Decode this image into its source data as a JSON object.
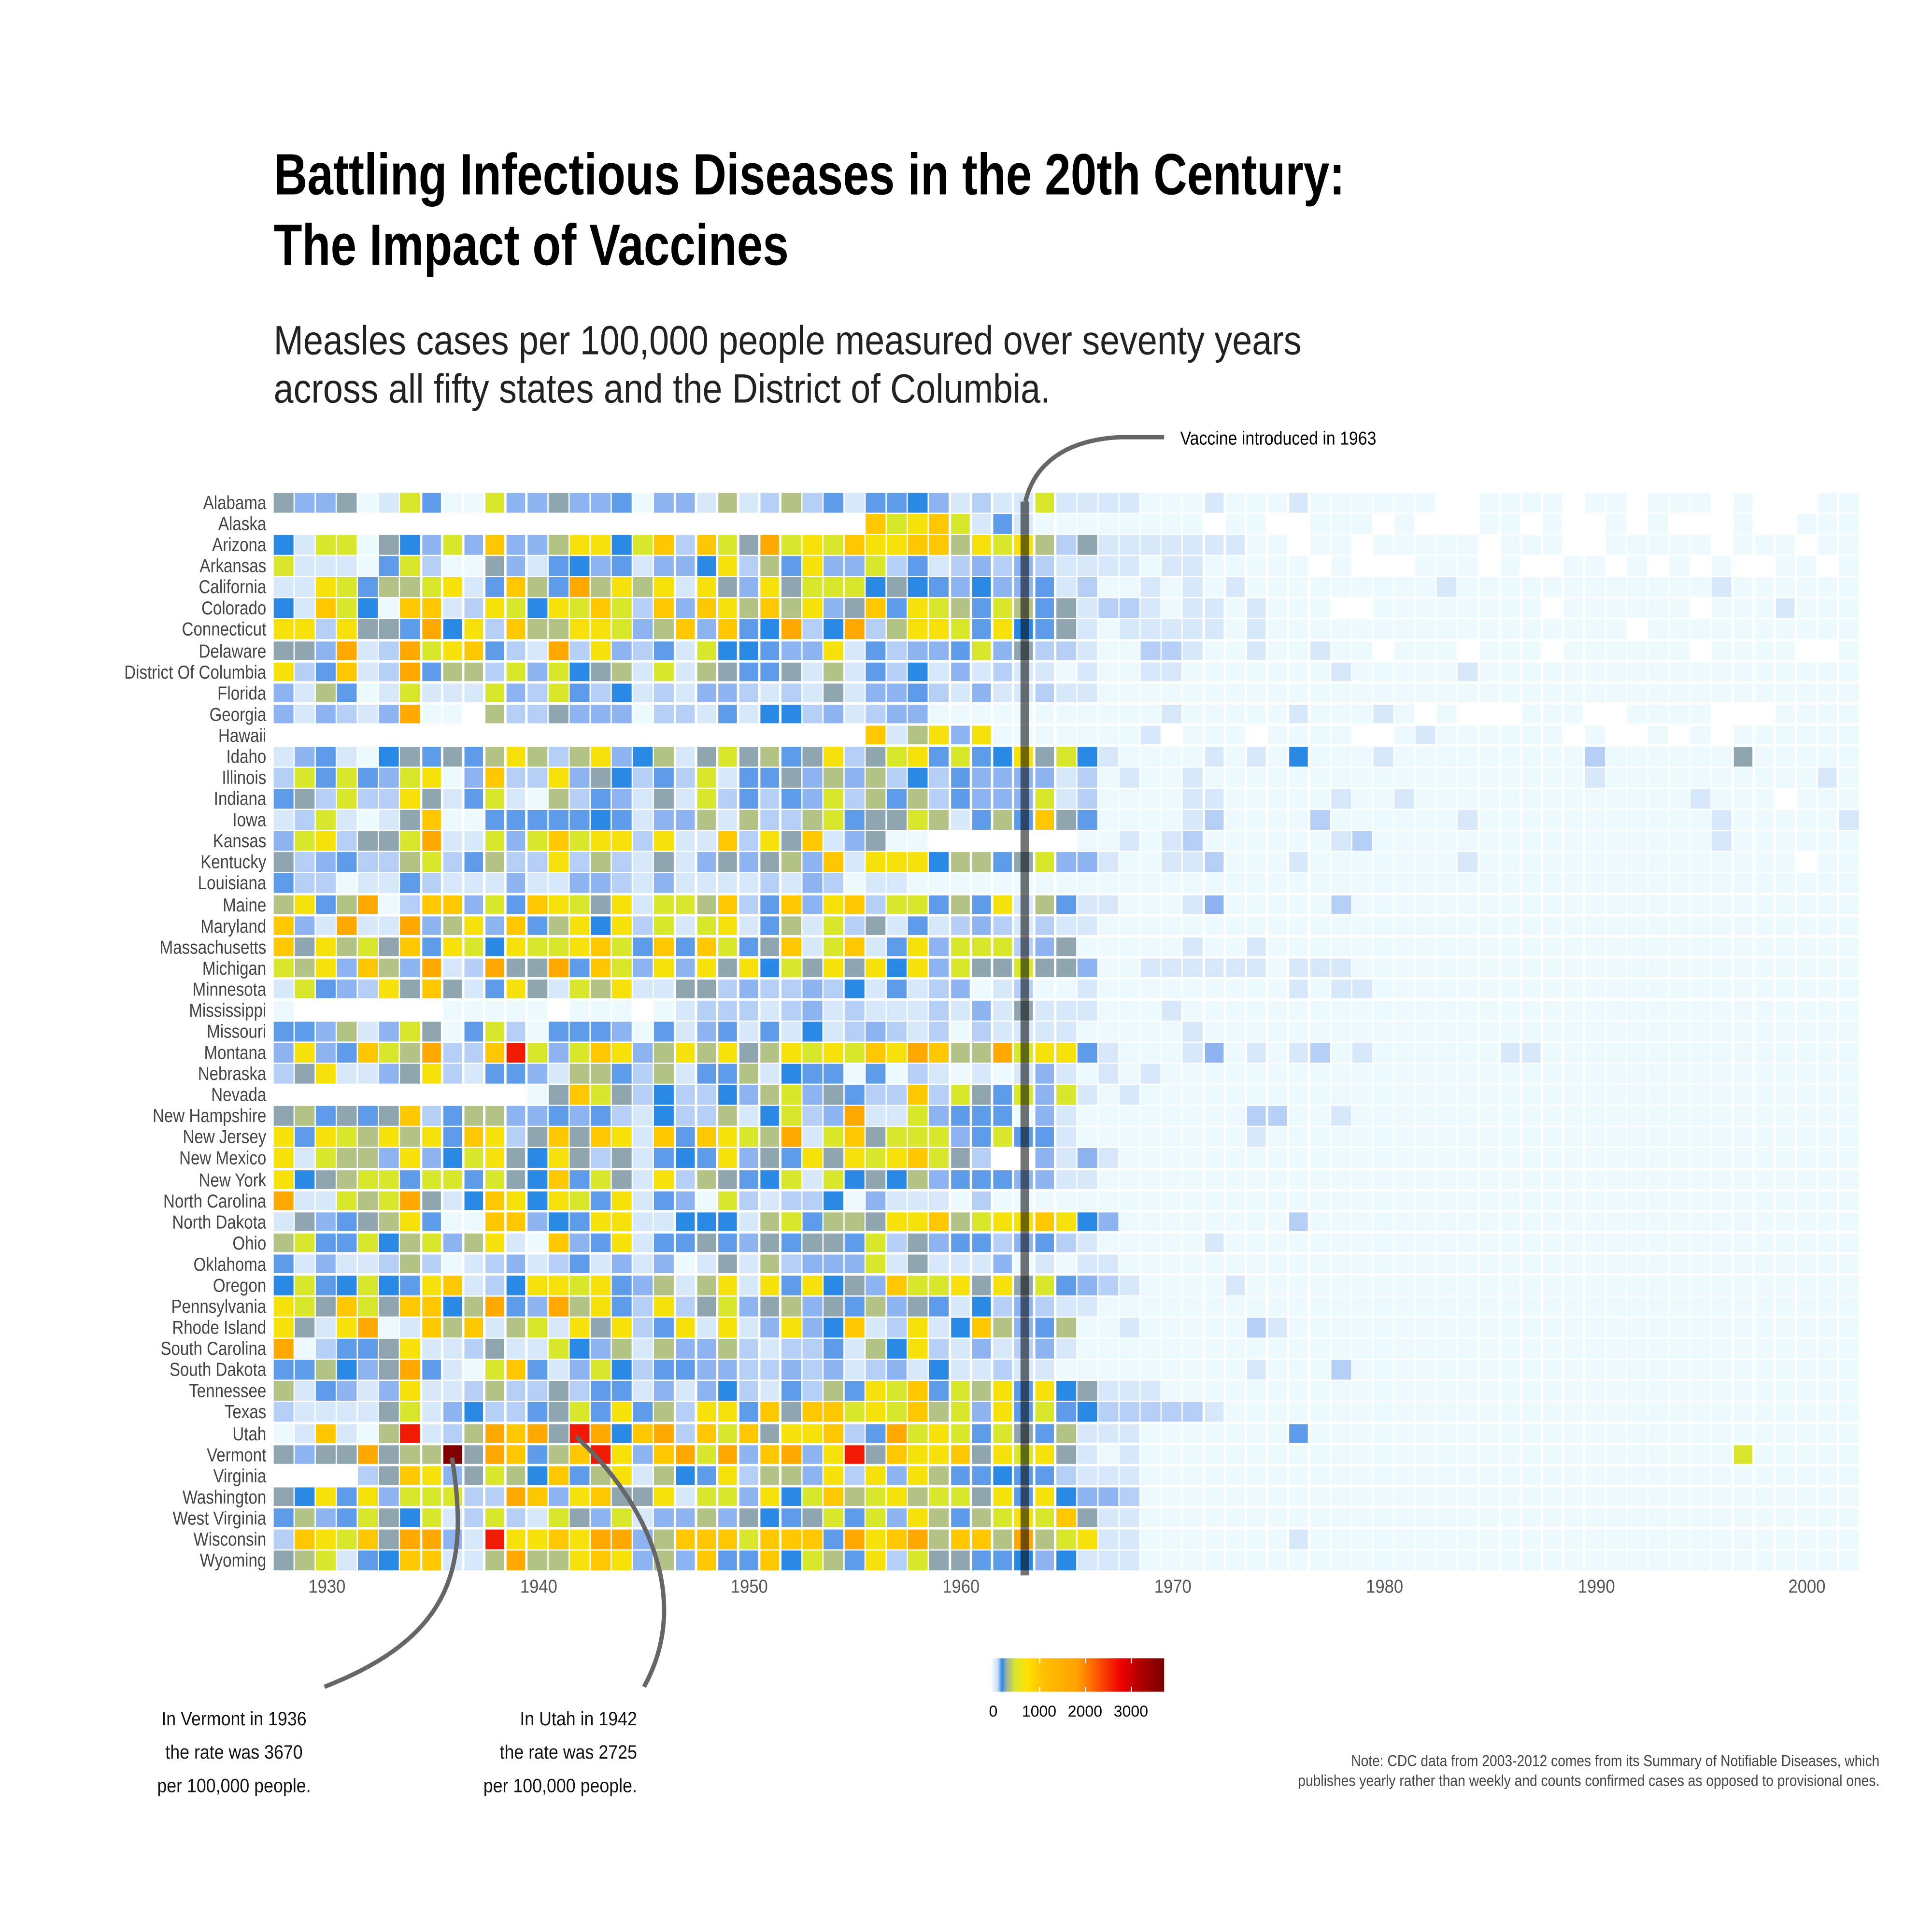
{
  "title": {
    "line1": "Battling Infectious Diseases in the 20th Century:",
    "line2": "The Impact of Vaccines"
  },
  "subtitle": {
    "line1": "Measles cases per 100,000 people measured over seventy years",
    "line2": "across all fifty states and the District of Columbia."
  },
  "annotations": {
    "vaccine": "Vaccine introduced in 1963",
    "vermont": [
      "In Vermont in 1936",
      "the rate was  3670",
      "per 100,000 people."
    ],
    "utah": [
      "In Utah in 1942",
      "the rate was  2725",
      "per 100,000 people."
    ]
  },
  "note": {
    "line1": "Note: CDC data from 2003-2012 comes from its Summary of Notifiable Diseases, which",
    "line2": "publishes yearly rather than weekly and counts confirmed cases as opposed to provisional ones."
  },
  "chart_data": {
    "type": "heatmap",
    "title": "Battling Infectious Diseases in the 20th Century: The Impact of Vaccines",
    "xlabel": "",
    "ylabel": "",
    "value_label": "Measles cases per 100,000 people",
    "year_start": 1928,
    "year_end": 2002,
    "x_ticks": [
      "1930",
      "1940",
      "1950",
      "1960",
      "1970",
      "1980",
      "1990",
      "2000"
    ],
    "vaccine_year": 1963,
    "legend": {
      "ticks": [
        "0",
        "1000",
        "2000",
        "3000"
      ],
      "range": [
        0,
        3670
      ],
      "placement": "bottom-center"
    },
    "encoding_note": "each row string holds one code per year; '.' = no data",
    "code_values": {
      "0": 5,
      "1": 30,
      "2": 70,
      "3": 120,
      "4": 170,
      "5": 240,
      "6": 330,
      "7": 450,
      "8": 600,
      "9": 800,
      "a": 1100,
      "b": 1500,
      "c": 2725,
      "d": 3670
    },
    "code_colors": {
      "0": "#ecfafd",
      "1": "#d6e8fa",
      "2": "#b5cff6",
      "3": "#8db4f0",
      "4": "#5e9be8",
      "5": "#2b89e6",
      "6": "#8fa6b0",
      "7": "#b3c285",
      "8": "#d8e62c",
      "9": "#f6e20a",
      "a": "#ffc700",
      "b": "#ffa800",
      "c": "#f01a05",
      "d": "#800000"
    },
    "states": [
      "Alabama",
      "Alaska",
      "Arizona",
      "Arkansas",
      "California",
      "Colorado",
      "Connecticut",
      "Delaware",
      "District Of Columbia",
      "Florida",
      "Georgia",
      "Hawaii",
      "Idaho",
      "Illinois",
      "Indiana",
      "Iowa",
      "Kansas",
      "Kentucky",
      "Louisiana",
      "Maine",
      "Maryland",
      "Massachusetts",
      "Michigan",
      "Minnesota",
      "Mississippi",
      "Missouri",
      "Montana",
      "Nebraska",
      "Nevada",
      "New Hampshire",
      "New Jersey",
      "New Mexico",
      "New York",
      "North Carolina",
      "North Dakota",
      "Ohio",
      "Oklahoma",
      "Oregon",
      "Pennsylvania",
      "Rhode Island",
      "South Carolina",
      "South Dakota",
      "Tennessee",
      "Texas",
      "Utah",
      "Vermont",
      "Virginia",
      "Washington",
      "West Virginia",
      "Wisconsin",
      "Wyoming"
    ],
    "rows": [
      "6336018400833633403317127241445312118111100010001000000..0000.00.000.0...00",
      "............................a89a814100000000.00..000.0...00.0..0.0...0..",
      "5188065383a3379958a2a86b898a99aa7989726111111100.00.00000.000..00000.000.00.",
      "8111048200631453413359274933824123232111101100000.0...000.0..00.0.0.0..00.",
      "11984778914a74b7979196396888565435334120010101000000000100000000000010000",
      "51a850aa1298598a82a3a97a7936a498748746122101101000..00000000.000000.0001000",
      "9929664b592a7799837a3a45b25b279984954610111110100000000000000000.000000000000",
      "663b12b89a421b29324185543391423348362210022100100100.000.000.000000.0000..0",
      "924a12b477283856718176446171425131211010011000000010000010000000000000000000.",
      "31740181118328425121332121613342131121100000000000000000000000000000000000",
      "313213b00.72263330221415523123300000000000100000100010.0...000..0000...00",
      "............................a1793900000001.000.0000..01000000.0..0.0.00",
      "134105646479727935716867469268948459685100001010500010000000002000000600000",
      "2848438903a2293652428144637372524333312010010000000000000000001000000000010",
      "46282296148107243161824243827472433381200001100000100100000000000001000.0000",
      "1281016a0044444541337172278466871474a64000012000020000001000000000001000001000",
      "3892668b11838a8992911a296a13600.......00101200000012000000000000000010000000",
      "62342278247229272161363673a199957746833100112000100000001000000000000000.00",
      "4220114211131133213111121320110000000000000000000000000000000000000000000",
      "7947b02aa384a98691887a24a39a288474917411000130000020000000000000000000000000",
      "a31b11b3793a4795928189147182614123212110000000000000000000000000000000000000",
      "a69786a49859889a84a4a846a18a149388823600000100100000000000000000000000000000",
      "8793a73b12b66b4a83939695869695938668663001111110111000000000000000000000000000",
      "1843296a614961879116623223251412301200100000000010110000000000000000000000000",
      "0.......00000.000.012221231211121316111000100000000000000000000000000000000",
      "4437138604820444304134141512321202111100000100000000000000000000000000000000",
      "3934a87b22ac838a937979679898a9ba77b89941000130101201000000110000000000000000",
      "2691136921443177427144715440402101013101010000000000000000000000000000000000",
      "............06a862522537836422a286483810100000000000000000000000000000000000",
      "674646a24773343421522715823b11834440310000000022001000000000000000000000000",
      "949879794a926a6a91a4a987b18a68883484410000000010000000000000000000000000000",
      "918773935896596261454936496989a862..31310000000000000000000000000000000000",
      "9567884884865a48619276458185657344433110000000000000000000000000000000000",
      "b11878b615a959849143082122503111020000000000000000000000000000000000000000",
      "1634679400aa3549911555178477699a7899a953000000002000000000000000000000000",
      "7844857837910a349144643646648263442342100000100000000000000000000000000000",
      "41311272012312413130161723338161113010110000000000000000000000000000000000",
      "58458549a12599894371791949563a889696843210000100000000000000000000000000000",
      "986a86aa57b43b7942926836736473641523211000000000000000000000000000000000000",
      "9619b01a7a17819692491913935a12915a734700100000210000000000000000000000000000",
      "b024469112611853717337212241759213123100000000000000000000000000000000000000",
      "447536b4108a41385244332232312315112110000000001000200000000000000000000000000",
      "714313911272262441313521427498a48794956111000000000000000000000000000000000",
      "21111681352246849472994a6aa898a78394845222221000000000000000000000000000000000",
      "01a107c127bab6cb5ab2a8a699a24b89848647111000000040000000000000000000000000000",
      "6366b677d6ba47ac93ab8b3ab39c6a99a69896101000000000000000000000000000080000",
      "....26a936875a479175492773929397445442111000000000000000000000000000000000000",
      "65949388822ba39a6691883958a789788694953320000000000000000000000000000000000",
      "4734865812821863813373654684839747898a611000000000000000000000000000000000",
      "2a98a6bb31c99a9bb37aaa8aaa4b9ab7aa7b78911000000010000000000000000000000000",
      "678145aa117b779a9373a44a587492866445351110000000000000000000000000000000000"
    ]
  }
}
